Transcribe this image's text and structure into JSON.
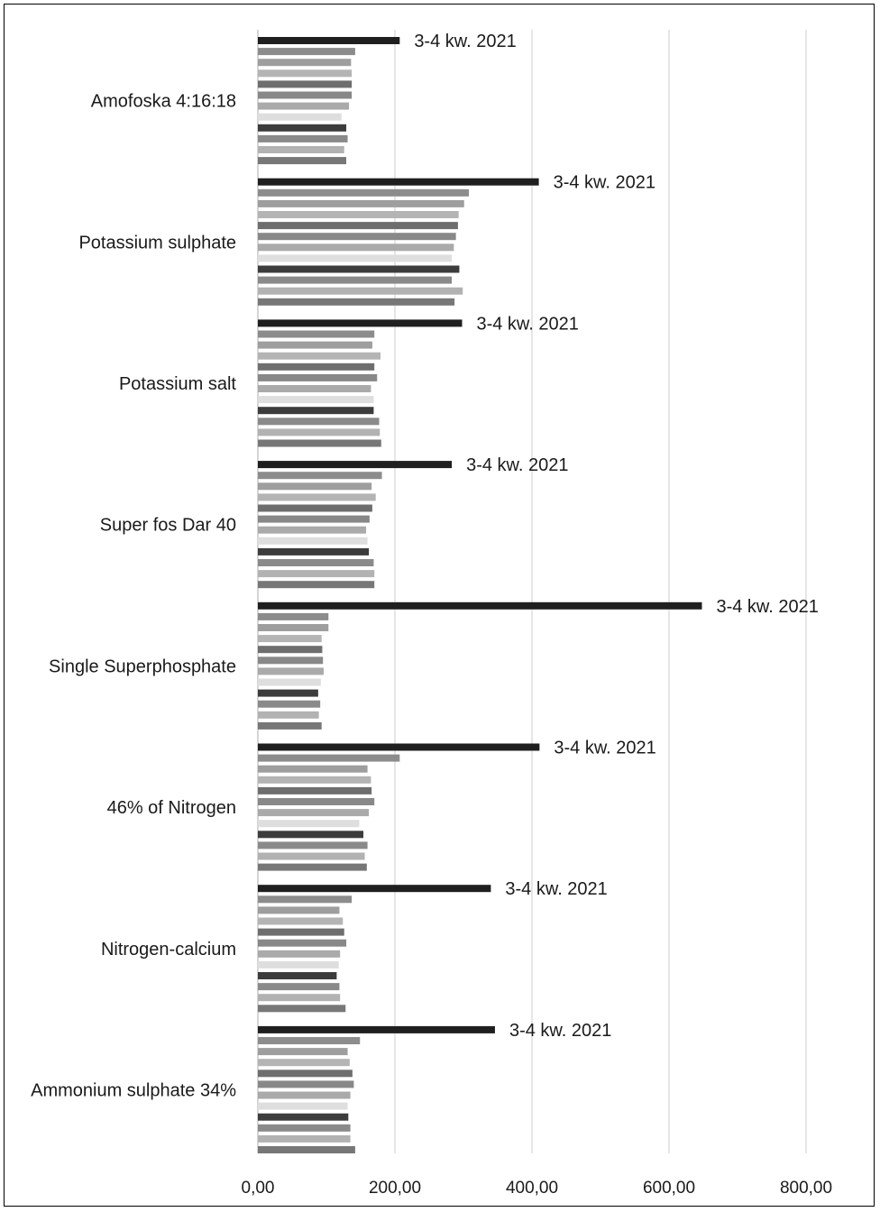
{
  "chart_data": {
    "type": "bar",
    "orientation": "horizontal",
    "categories": [
      "Amofoska 4:16:18",
      "Potassium sulphate",
      "Potassium salt",
      "Super fos Dar 40",
      "Single Superphosphate",
      "46% of Nitrogen",
      "Nitrogen-calcium",
      "Ammonium sulphate 34%"
    ],
    "bar_colors": [
      "#1f1f1f",
      "#8c8c8c",
      "#9e9e9e",
      "#b4b4b4",
      "#6e6e6e",
      "#888888",
      "#aaaaaa",
      "#dedede",
      "#3c3c3c",
      "#8a8a8a",
      "#b2b2b2",
      "#777777"
    ],
    "values": [
      [
        207,
        142,
        136,
        137,
        137,
        137,
        133,
        122,
        129,
        131,
        126,
        129
      ],
      [
        410,
        308,
        301,
        293,
        292,
        289,
        286,
        283,
        294,
        283,
        299,
        287
      ],
      [
        298,
        170,
        167,
        179,
        170,
        174,
        165,
        169,
        169,
        177,
        178,
        180
      ],
      [
        283,
        181,
        166,
        172,
        167,
        163,
        158,
        160,
        162,
        169,
        170,
        170
      ],
      [
        648,
        103,
        103,
        93,
        94,
        95,
        96,
        92,
        88,
        91,
        89,
        93
      ],
      [
        411,
        207,
        160,
        165,
        166,
        170,
        162,
        148,
        154,
        160,
        156,
        159
      ],
      [
        340,
        137,
        119,
        124,
        126,
        129,
        120,
        118,
        115,
        119,
        120,
        128
      ],
      [
        346,
        149,
        131,
        134,
        138,
        140,
        135,
        131,
        132,
        135,
        135,
        142
      ]
    ],
    "data_labels": [
      "3-4 kw. 2021",
      "3-4 kw. 2021",
      "3-4 kw. 2021",
      "3-4 kw. 2021",
      "3-4 kw. 2021",
      "3-4 kw. 2021",
      "3-4 kw. 2021",
      "3-4 kw. 2021"
    ],
    "x_ticks": [
      "0,00",
      "200,00",
      "400,00",
      "600,00",
      "800,00"
    ],
    "xlim": [
      0,
      800
    ],
    "grid": "vertical",
    "legend": "none"
  }
}
